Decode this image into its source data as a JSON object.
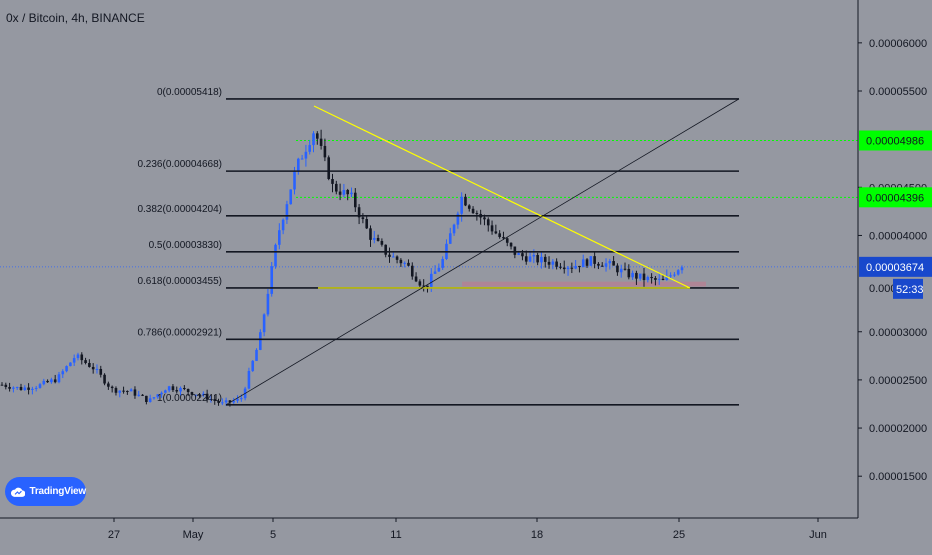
{
  "header": {
    "symbol_line": "0x / Bitcoin, 4h, BINANCE"
  },
  "branding": {
    "logo_text": "TradingView",
    "logo_icon": "tradingview-cloud-icon",
    "accent": "#2962ff"
  },
  "chart_data": {
    "type": "candlestick",
    "title": "0x / Bitcoin, 4h, BINANCE",
    "y_ticks": [
      "0.00006000",
      "0.00005500",
      "0.00004500",
      "0.00004000",
      "0.00003000",
      "0.00002500",
      "0.00002000",
      "0.00001500"
    ],
    "x_ticks": [
      "27",
      "May",
      "5",
      "11",
      "18",
      "25",
      "Jun"
    ],
    "price_labels": [
      {
        "value": "0.00004986",
        "color": "#00ff00"
      },
      {
        "value": "0.00004396",
        "color": "#00ff00"
      },
      {
        "value": "0.00003674",
        "color": "#1848cc"
      },
      {
        "value": "52:33",
        "color": "#1848cc"
      }
    ],
    "hidden_tick_fragment": "0.0000",
    "fib_levels": [
      {
        "label": "0(0.00005418)"
      },
      {
        "label": "0.236(0.00004668)"
      },
      {
        "label": "0.382(0.00004204)"
      },
      {
        "label": "0.5(0.00003830)"
      },
      {
        "label": "0.618(0.00003455)"
      },
      {
        "label": "0.786(0.00002921)"
      },
      {
        "label": "1(0.00002241)"
      }
    ],
    "current_price": 3.674e-05,
    "colors": {
      "up": "#2962ff",
      "down": "#131722",
      "fib": "#131722",
      "trendline": "#ffff00",
      "support": "#ffff00",
      "zone": "#e06080",
      "green_level": "#00ff00",
      "price_line": "#2962ff"
    },
    "series": [
      {
        "name": "close",
        "values": [
          2.45e-05,
          2.41e-05,
          2.44e-05,
          2.51e-05,
          2.75e-05,
          2.62e-05,
          2.4e-05,
          2.38e-05,
          2.28e-05,
          2.43e-05,
          2.39e-05,
          2.33e-05,
          2.25e-05,
          2.3e-05,
          2.9e-05,
          4e-05,
          4.7e-05,
          5.1e-05,
          4.5e-05,
          4.4e-05,
          4e-05,
          3.8e-05,
          3.7e-05,
          3.45e-05,
          3.75e-05,
          4.4e-05,
          4.2e-05,
          4e-05,
          3.8e-05,
          3.75e-05,
          3.72e-05,
          3.68e-05,
          3.74e-05,
          3.7e-05,
          3.6e-05,
          3.55e-05,
          3.52e-05,
          3.7e-05
        ]
      }
    ]
  }
}
